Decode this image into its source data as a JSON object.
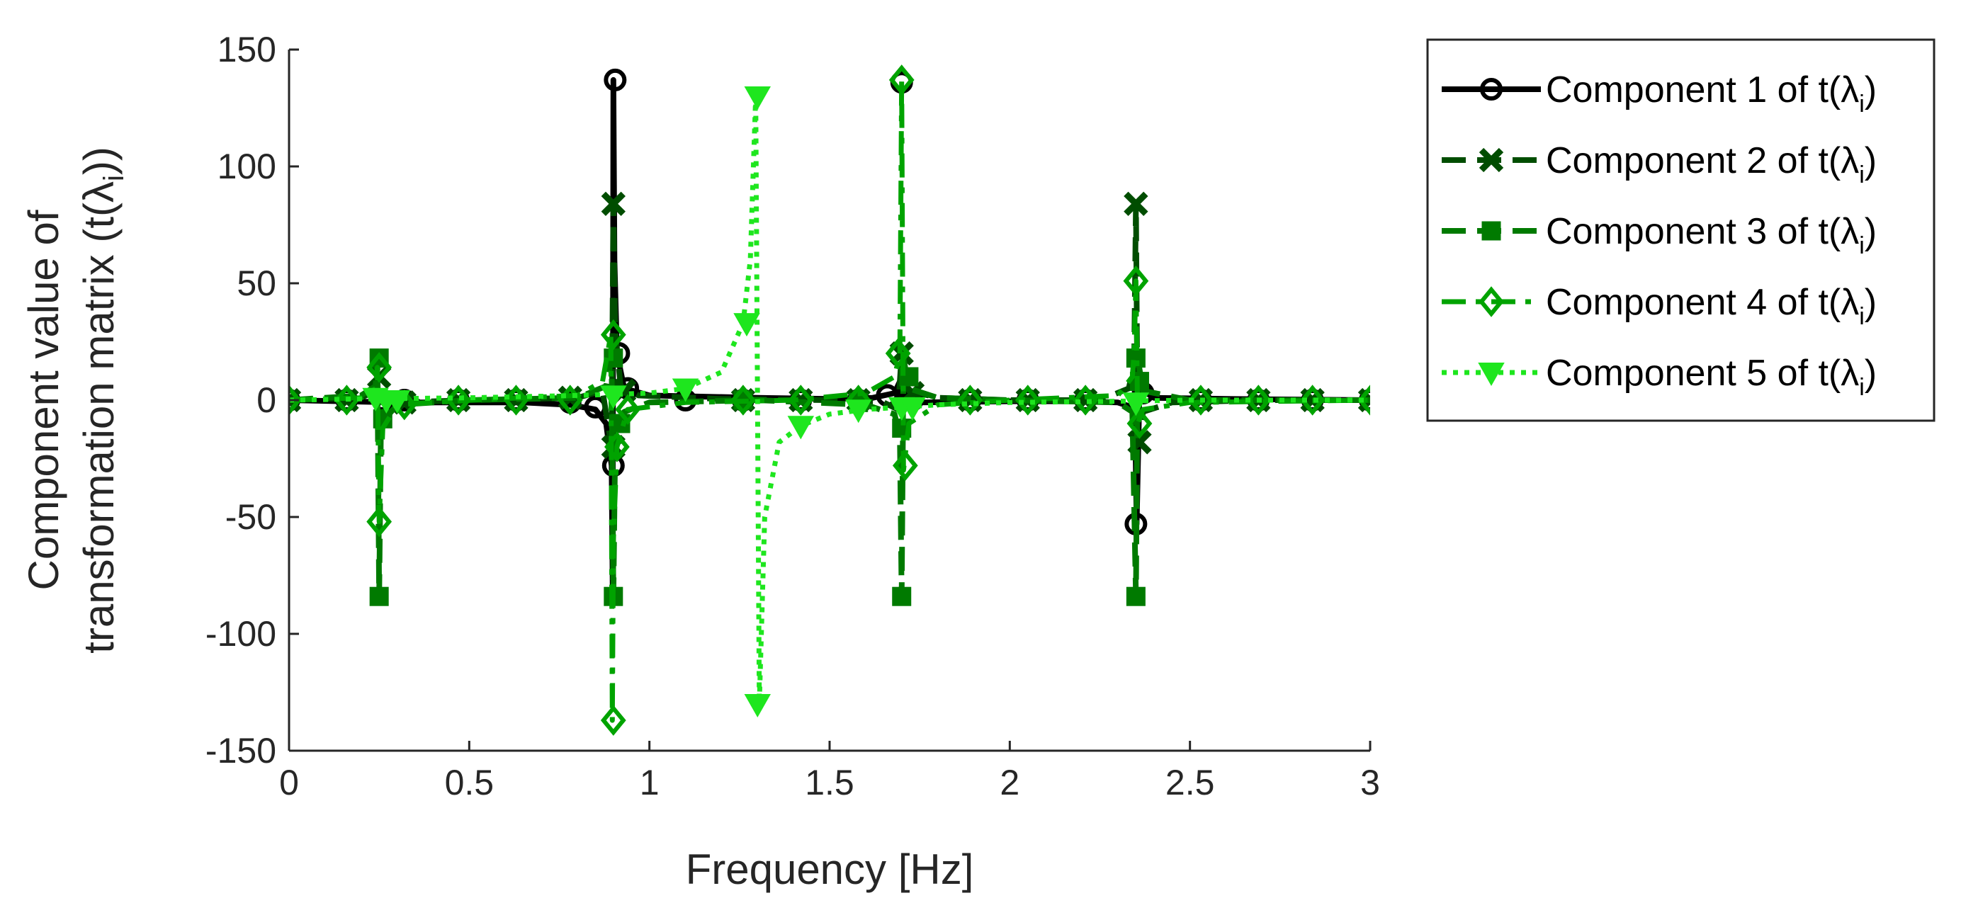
{
  "chart_data": {
    "type": "line",
    "title": "",
    "xlabel": "Frequency [Hz]",
    "ylabel_line1": "Component value of",
    "ylabel_line2": "transformation matrix (t(λ",
    "ylabel_sub": "i",
    "ylabel_close": "))",
    "xlim": [
      0,
      3
    ],
    "ylim": [
      -150,
      150
    ],
    "x_ticks": [
      0,
      0.5,
      1,
      1.5,
      2,
      2.5,
      3
    ],
    "x_tick_labels": [
      "0",
      "0.5",
      "1",
      "1.5",
      "2",
      "2.5",
      "3"
    ],
    "y_ticks": [
      150,
      100,
      50,
      0,
      -50,
      -100,
      -150
    ],
    "y_tick_labels": [
      "150",
      "100",
      "50",
      "0",
      "-50",
      "-100",
      "-150"
    ],
    "grid": false,
    "legend_position": "outside-right-top",
    "legend_prefix": "Component ",
    "legend_suffix": " of t(λ",
    "legend_sub": "i",
    "legend_close": ")",
    "series": [
      {
        "name": "Component 1 of t(λi)",
        "index_label": "1",
        "color": "#000000",
        "line_style": "solid",
        "marker": "circle",
        "points": [
          [
            0,
            0
          ],
          [
            0.15,
            -0.5
          ],
          [
            0.3,
            -1
          ],
          [
            0.5,
            -1
          ],
          [
            0.65,
            -1
          ],
          [
            0.78,
            -2
          ],
          [
            0.85,
            -4
          ],
          [
            0.88,
            -10
          ],
          [
            0.895,
            -28
          ],
          [
            0.898,
            -80
          ],
          [
            0.9,
            137
          ],
          [
            0.903,
            60
          ],
          [
            0.91,
            20
          ],
          [
            0.93,
            5
          ],
          [
            1.0,
            2
          ],
          [
            1.3,
            1
          ],
          [
            1.5,
            0.5
          ],
          [
            1.62,
            1
          ],
          [
            1.68,
            3
          ],
          [
            1.695,
            8
          ],
          [
            1.7,
            -1
          ],
          [
            1.75,
            -1
          ],
          [
            2.0,
            -0.5
          ],
          [
            2.2,
            -0.5
          ],
          [
            2.3,
            -1
          ],
          [
            2.34,
            -3
          ],
          [
            2.348,
            -10
          ],
          [
            2.352,
            -53
          ],
          [
            2.36,
            5
          ],
          [
            2.4,
            1
          ],
          [
            2.6,
            0.5
          ],
          [
            3.0,
            0
          ]
        ],
        "markers_at": [
          [
            0,
            0
          ],
          [
            0.16,
            0
          ],
          [
            0.26,
            0
          ],
          [
            0.32,
            0
          ],
          [
            0.47,
            0
          ],
          [
            0.63,
            0
          ],
          [
            0.78,
            -1
          ],
          [
            0.85,
            -3
          ],
          [
            0.9,
            -28
          ],
          [
            0.905,
            137
          ],
          [
            0.915,
            20
          ],
          [
            0.94,
            5
          ],
          [
            1.1,
            0
          ],
          [
            1.26,
            0
          ],
          [
            1.42,
            0
          ],
          [
            1.58,
            0
          ],
          [
            1.66,
            2
          ],
          [
            1.7,
            136
          ],
          [
            1.73,
            0
          ],
          [
            1.89,
            0
          ],
          [
            2.05,
            0
          ],
          [
            2.21,
            0
          ],
          [
            2.35,
            -53
          ],
          [
            2.37,
            3
          ],
          [
            2.53,
            0
          ],
          [
            2.69,
            0
          ],
          [
            2.84,
            0
          ],
          [
            3.0,
            0
          ]
        ]
      },
      {
        "name": "Component 2 of t(λi)",
        "index_label": "2",
        "color": "#004d00",
        "line_style": "dashed",
        "marker": "x",
        "points": [
          [
            0,
            0
          ],
          [
            0.2,
            1
          ],
          [
            0.24,
            4
          ],
          [
            0.245,
            10
          ],
          [
            0.25,
            -10
          ],
          [
            0.26,
            -5
          ],
          [
            0.3,
            -1
          ],
          [
            0.5,
            0
          ],
          [
            0.8,
            1
          ],
          [
            0.87,
            4
          ],
          [
            0.895,
            -20
          ],
          [
            0.9,
            84
          ],
          [
            0.905,
            30
          ],
          [
            0.92,
            6
          ],
          [
            0.97,
            2
          ],
          [
            1.2,
            0.5
          ],
          [
            1.5,
            0
          ],
          [
            1.65,
            -1
          ],
          [
            1.69,
            -4
          ],
          [
            1.7,
            20
          ],
          [
            1.72,
            4
          ],
          [
            1.8,
            1
          ],
          [
            2.0,
            0
          ],
          [
            2.25,
            0
          ],
          [
            2.33,
            5
          ],
          [
            2.345,
            15
          ],
          [
            2.35,
            84
          ],
          [
            2.355,
            -18
          ],
          [
            2.37,
            -5
          ],
          [
            2.45,
            -1
          ],
          [
            2.7,
            0
          ],
          [
            3.0,
            0
          ]
        ],
        "markers_at": [
          [
            0,
            0
          ],
          [
            0.16,
            0
          ],
          [
            0.25,
            10
          ],
          [
            0.32,
            -1
          ],
          [
            0.47,
            0
          ],
          [
            0.63,
            0
          ],
          [
            0.78,
            1
          ],
          [
            0.9,
            84
          ],
          [
            0.9,
            -20
          ],
          [
            0.93,
            4
          ],
          [
            1.26,
            0
          ],
          [
            1.42,
            0
          ],
          [
            1.58,
            0
          ],
          [
            1.7,
            20
          ],
          [
            1.73,
            3
          ],
          [
            1.89,
            0
          ],
          [
            2.05,
            0
          ],
          [
            2.21,
            0
          ],
          [
            2.35,
            84
          ],
          [
            2.36,
            -18
          ],
          [
            2.53,
            0
          ],
          [
            2.69,
            0
          ],
          [
            2.84,
            0
          ],
          [
            3.0,
            0
          ]
        ]
      },
      {
        "name": "Component 3 of t(λi)",
        "index_label": "3",
        "color": "#007a00",
        "line_style": "dashed",
        "marker": "square",
        "points": [
          [
            0,
            0
          ],
          [
            0.2,
            2
          ],
          [
            0.24,
            6
          ],
          [
            0.245,
            18
          ],
          [
            0.25,
            -84
          ],
          [
            0.255,
            -10
          ],
          [
            0.3,
            -2
          ],
          [
            0.5,
            0
          ],
          [
            0.8,
            1
          ],
          [
            0.88,
            6
          ],
          [
            0.895,
            18
          ],
          [
            0.9,
            -84
          ],
          [
            0.905,
            -20
          ],
          [
            0.93,
            -5
          ],
          [
            1.0,
            -1
          ],
          [
            1.3,
            0
          ],
          [
            1.6,
            -2
          ],
          [
            1.68,
            -6
          ],
          [
            1.695,
            -15
          ],
          [
            1.7,
            -84
          ],
          [
            1.705,
            18
          ],
          [
            1.72,
            5
          ],
          [
            1.8,
            1
          ],
          [
            2.0,
            0
          ],
          [
            2.3,
            -1
          ],
          [
            2.34,
            -5
          ],
          [
            2.35,
            -84
          ],
          [
            2.355,
            18
          ],
          [
            2.37,
            4
          ],
          [
            2.5,
            0
          ],
          [
            3.0,
            0
          ]
        ],
        "markers_at": [
          [
            0.25,
            18
          ],
          [
            0.25,
            -84
          ],
          [
            0.26,
            -8
          ],
          [
            0.9,
            18
          ],
          [
            0.9,
            -84
          ],
          [
            0.92,
            -10
          ],
          [
            1.26,
            0
          ],
          [
            1.58,
            -1
          ],
          [
            1.7,
            -12
          ],
          [
            1.7,
            -84
          ],
          [
            1.72,
            10
          ],
          [
            2.35,
            18
          ],
          [
            2.35,
            -84
          ],
          [
            2.36,
            8
          ]
        ]
      },
      {
        "name": "Component 4 of t(λi)",
        "index_label": "4",
        "color": "#00a300",
        "line_style": "dashdot",
        "marker": "diamond",
        "points": [
          [
            0,
            0
          ],
          [
            0.2,
            1
          ],
          [
            0.24,
            5
          ],
          [
            0.245,
            14
          ],
          [
            0.25,
            -52
          ],
          [
            0.26,
            -12
          ],
          [
            0.3,
            -2
          ],
          [
            0.5,
            0
          ],
          [
            0.8,
            2
          ],
          [
            0.87,
            8
          ],
          [
            0.893,
            28
          ],
          [
            0.897,
            -137
          ],
          [
            0.9,
            -60
          ],
          [
            0.91,
            -20
          ],
          [
            0.94,
            -4
          ],
          [
            1.1,
            -1
          ],
          [
            1.4,
            0
          ],
          [
            1.6,
            3
          ],
          [
            1.68,
            10
          ],
          [
            1.695,
            20
          ],
          [
            1.7,
            137
          ],
          [
            1.705,
            -30
          ],
          [
            1.72,
            -10
          ],
          [
            1.8,
            -2
          ],
          [
            2.0,
            0
          ],
          [
            2.3,
            2
          ],
          [
            2.34,
            10
          ],
          [
            2.345,
            20
          ],
          [
            2.35,
            51
          ],
          [
            2.355,
            -10
          ],
          [
            2.37,
            -4
          ],
          [
            2.5,
            -1
          ],
          [
            3.0,
            0
          ]
        ],
        "markers_at": [
          [
            0,
            0
          ],
          [
            0.16,
            0
          ],
          [
            0.25,
            14
          ],
          [
            0.25,
            -52
          ],
          [
            0.32,
            -2
          ],
          [
            0.47,
            0
          ],
          [
            0.63,
            0
          ],
          [
            0.78,
            0
          ],
          [
            0.9,
            28
          ],
          [
            0.9,
            -137
          ],
          [
            0.91,
            -20
          ],
          [
            0.94,
            -4
          ],
          [
            1.26,
            0
          ],
          [
            1.42,
            0
          ],
          [
            1.58,
            0
          ],
          [
            1.69,
            20
          ],
          [
            1.7,
            137
          ],
          [
            1.71,
            -28
          ],
          [
            1.89,
            0
          ],
          [
            2.05,
            0
          ],
          [
            2.21,
            0
          ],
          [
            2.35,
            51
          ],
          [
            2.36,
            -10
          ],
          [
            2.53,
            0
          ],
          [
            2.69,
            0
          ],
          [
            2.84,
            0
          ],
          [
            3.0,
            0
          ]
        ]
      },
      {
        "name": "Component 5 of t(λi)",
        "index_label": "5",
        "color": "#1ee61e",
        "line_style": "dotted",
        "marker": "triangle-down",
        "points": [
          [
            0,
            0
          ],
          [
            0.2,
            0.5
          ],
          [
            0.5,
            1
          ],
          [
            0.8,
            2
          ],
          [
            1.0,
            3
          ],
          [
            1.1,
            5
          ],
          [
            1.2,
            12
          ],
          [
            1.26,
            33
          ],
          [
            1.28,
            60
          ],
          [
            1.295,
            130
          ],
          [
            1.305,
            -130
          ],
          [
            1.32,
            -50
          ],
          [
            1.36,
            -18
          ],
          [
            1.42,
            -11
          ],
          [
            1.5,
            -6
          ],
          [
            1.6,
            -4
          ],
          [
            1.7,
            -3
          ],
          [
            1.8,
            -2
          ],
          [
            2.0,
            -1
          ],
          [
            2.3,
            -0.5
          ],
          [
            2.5,
            0
          ],
          [
            3.0,
            0
          ]
        ],
        "markers_at": [
          [
            0.24,
            1
          ],
          [
            0.27,
            0
          ],
          [
            0.3,
            0
          ],
          [
            0.9,
            2
          ],
          [
            1.1,
            5
          ],
          [
            1.27,
            33
          ],
          [
            1.3,
            130
          ],
          [
            1.3,
            -130
          ],
          [
            1.42,
            -11
          ],
          [
            1.58,
            -4
          ],
          [
            1.7,
            -3
          ],
          [
            1.73,
            -3
          ],
          [
            2.35,
            -1
          ]
        ]
      }
    ]
  }
}
